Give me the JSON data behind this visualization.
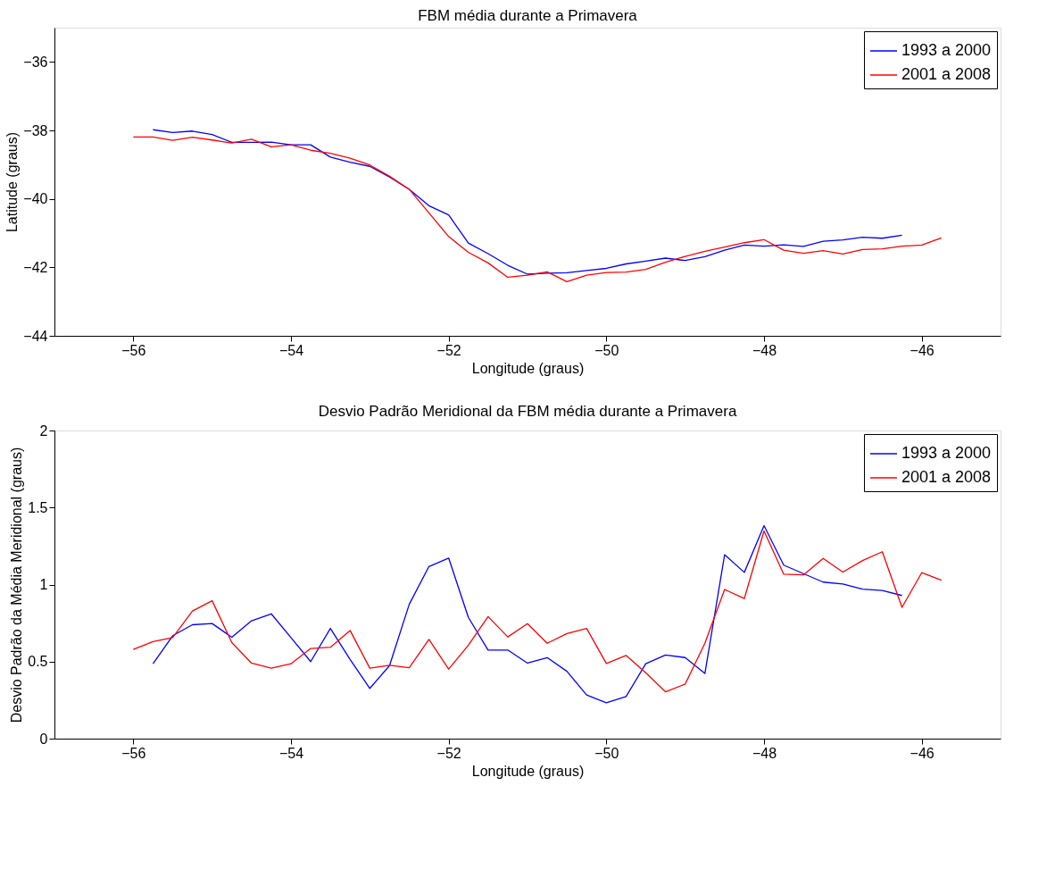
{
  "chart_data": [
    {
      "type": "line",
      "title": "FBM média durante a Primavera",
      "xlabel": "Longitude (graus)",
      "ylabel": "Latitude (graus)",
      "xlim": [
        -57,
        -45
      ],
      "xticks": [
        -56,
        -54,
        -52,
        -50,
        -48,
        -46
      ],
      "ylim": [
        -44,
        -35
      ],
      "yticks": [
        -44,
        -42,
        -40,
        -38,
        -36
      ],
      "grid": false,
      "legend": "top right",
      "series": [
        {
          "name": "1993 a 2000",
          "color": "#0000ff",
          "x": [
            -55.75,
            -55.5,
            -55.25,
            -55,
            -54.75,
            -54.5,
            -54.25,
            -54,
            -53.75,
            -53.5,
            -53.25,
            -53,
            -52.75,
            -52.5,
            -52.25,
            -52,
            -51.75,
            -51.5,
            -51.25,
            -51,
            -50.75,
            -50.5,
            -50.25,
            -50,
            -49.75,
            -49.5,
            -49.25,
            -49,
            -48.75,
            -48.5,
            -48.25,
            -48,
            -47.75,
            -47.5,
            -47.25,
            -47,
            -46.75,
            -46.5,
            -46.25
          ],
          "values": [
            -37.98,
            -38.06,
            -38.02,
            -38.12,
            -38.35,
            -38.35,
            -38.34,
            -38.42,
            -38.42,
            -38.78,
            -38.93,
            -39.05,
            -39.36,
            -39.72,
            -40.2,
            -40.47,
            -41.29,
            -41.6,
            -41.94,
            -42.2,
            -42.17,
            -42.16,
            -42.09,
            -42.03,
            -41.9,
            -41.82,
            -41.73,
            -41.8,
            -41.69,
            -41.5,
            -41.35,
            -41.38,
            -41.34,
            -41.39,
            -41.24,
            -41.2,
            -41.12,
            -41.15,
            -41.06
          ]
        },
        {
          "name": "2001 a 2008",
          "color": "#ff0000",
          "x": [
            -56,
            -55.75,
            -55.5,
            -55.25,
            -55,
            -54.75,
            -54.5,
            -54.25,
            -54,
            -53.75,
            -53.5,
            -53.25,
            -53,
            -52.75,
            -52.5,
            -52.25,
            -52,
            -51.75,
            -51.5,
            -51.25,
            -51,
            -50.75,
            -50.5,
            -50.25,
            -50,
            -49.75,
            -49.5,
            -49.25,
            -49,
            -48.75,
            -48.5,
            -48.25,
            -48,
            -47.75,
            -47.5,
            -47.25,
            -47,
            -46.75,
            -46.5,
            -46.25,
            -46,
            -45.75
          ],
          "values": [
            -38.19,
            -38.19,
            -38.29,
            -38.2,
            -38.28,
            -38.37,
            -38.26,
            -38.48,
            -38.42,
            -38.58,
            -38.67,
            -38.81,
            -39.01,
            -39.34,
            -39.72,
            -40.41,
            -41.1,
            -41.56,
            -41.87,
            -42.29,
            -42.23,
            -42.13,
            -42.42,
            -42.23,
            -42.15,
            -42.14,
            -42.06,
            -41.85,
            -41.68,
            -41.53,
            -41.41,
            -41.28,
            -41.19,
            -41.5,
            -41.59,
            -41.51,
            -41.61,
            -41.48,
            -41.46,
            -41.38,
            -41.35,
            -41.14
          ]
        }
      ]
    },
    {
      "type": "line",
      "title": "Desvio Padrão Meridional da FBM média durante a Primavera",
      "xlabel": "Longitude (graus)",
      "ylabel": "Desvio Padrão da Média Meridional (graus)",
      "xlim": [
        -57,
        -45
      ],
      "xticks": [
        -56,
        -54,
        -52,
        -50,
        -48,
        -46
      ],
      "ylim": [
        0,
        2
      ],
      "yticks": [
        0,
        0.5,
        1,
        1.5,
        2
      ],
      "grid": false,
      "legend": "top right",
      "series": [
        {
          "name": "1993 a 2000",
          "color": "#0000ff",
          "x": [
            -55.75,
            -55.5,
            -55.25,
            -55,
            -54.75,
            -54.5,
            -54.25,
            -54,
            -53.75,
            -53.5,
            -53.25,
            -53,
            -52.75,
            -52.5,
            -52.25,
            -52,
            -51.75,
            -51.5,
            -51.25,
            -51,
            -50.75,
            -50.5,
            -50.25,
            -50,
            -49.75,
            -49.5,
            -49.25,
            -49,
            -48.75,
            -48.5,
            -48.25,
            -48,
            -47.75,
            -47.5,
            -47.25,
            -47,
            -46.75,
            -46.5,
            -46.25
          ],
          "values": [
            0.486,
            0.668,
            0.739,
            0.747,
            0.658,
            0.765,
            0.81,
            0.656,
            0.5,
            0.715,
            0.514,
            0.326,
            0.474,
            0.872,
            1.117,
            1.172,
            0.787,
            0.575,
            0.575,
            0.49,
            0.526,
            0.437,
            0.283,
            0.233,
            0.273,
            0.486,
            0.543,
            0.526,
            0.423,
            1.194,
            1.079,
            1.383,
            1.126,
            1.071,
            1.016,
            1.004,
            0.97,
            0.962,
            0.929
          ]
        },
        {
          "name": "2001 a 2008",
          "color": "#ff0000",
          "x": [
            -56,
            -55.75,
            -55.5,
            -55.25,
            -55,
            -54.75,
            -54.5,
            -54.25,
            -54,
            -53.75,
            -53.5,
            -53.25,
            -53,
            -52.75,
            -52.5,
            -52.25,
            -52,
            -51.75,
            -51.5,
            -51.25,
            -51,
            -50.75,
            -50.5,
            -50.25,
            -50,
            -49.75,
            -49.5,
            -49.25,
            -49,
            -48.75,
            -48.5,
            -48.25,
            -48,
            -47.75,
            -47.5,
            -47.25,
            -47,
            -46.75,
            -46.5,
            -46.25,
            -46,
            -45.75
          ],
          "values": [
            0.579,
            0.63,
            0.656,
            0.828,
            0.895,
            0.623,
            0.49,
            0.457,
            0.486,
            0.585,
            0.593,
            0.702,
            0.457,
            0.476,
            0.46,
            0.644,
            0.451,
            0.607,
            0.792,
            0.66,
            0.746,
            0.619,
            0.682,
            0.715,
            0.488,
            0.54,
            0.427,
            0.304,
            0.354,
            0.619,
            0.968,
            0.909,
            1.348,
            1.067,
            1.063,
            1.17,
            1.081,
            1.156,
            1.213,
            0.852,
            1.077,
            1.028
          ]
        }
      ]
    }
  ]
}
